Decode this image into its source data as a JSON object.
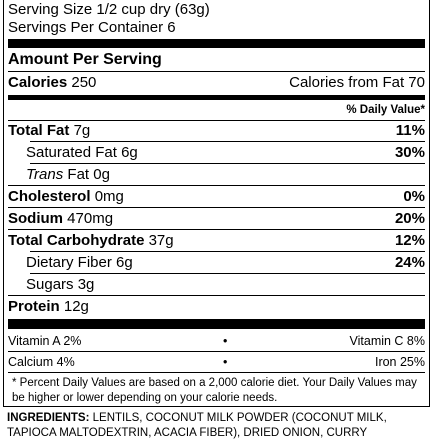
{
  "serving_size": "Serving Size 1/2 cup dry (63g)",
  "servings_per_container": "Servings Per Container 6",
  "amount_per_serving": "Amount Per Serving",
  "calories": {
    "label": "Calories",
    "value": "250",
    "from_fat": "Calories from Fat 70"
  },
  "dv_header": "% Daily Value*",
  "nutrients": [
    {
      "label": "Total Fat",
      "amount": "7g",
      "dv": "11%"
    },
    {
      "label": "Saturated Fat",
      "amount": "6g",
      "dv": "30%"
    },
    {
      "label": "Trans",
      "label_rest": "Fat",
      "amount": "0g",
      "dv": ""
    },
    {
      "label": "Cholesterol",
      "amount": "0mg",
      "dv": "0%"
    },
    {
      "label": "Sodium",
      "amount": "470mg",
      "dv": "20%"
    },
    {
      "label": "Total Carbohydrate",
      "amount": "37g",
      "dv": "12%"
    },
    {
      "label": "Dietary Fiber",
      "amount": "6g",
      "dv": "24%"
    },
    {
      "label": "Sugars",
      "amount": "3g",
      "dv": ""
    },
    {
      "label": "Protein",
      "amount": "12g",
      "dv": ""
    }
  ],
  "vitamins": [
    {
      "left": "Vitamin A 2%",
      "right": "Vitamin C 8%"
    },
    {
      "left": "Calcium 4%",
      "right": "Iron 25%"
    }
  ],
  "bullet": "•",
  "footnote": "* Percent Daily Values are based on a 2,000 calorie diet. Your Daily Values may be higher or lower depending on your calorie needs.",
  "ingredients_label": "INGREDIENTS:",
  "ingredients_text": "LENTILS, COCONUT MILK POWDER (COCONUT MILK, TAPIOCA MALTODEXTRIN, ACACIA FIBER), DRIED ONION, CURRY"
}
